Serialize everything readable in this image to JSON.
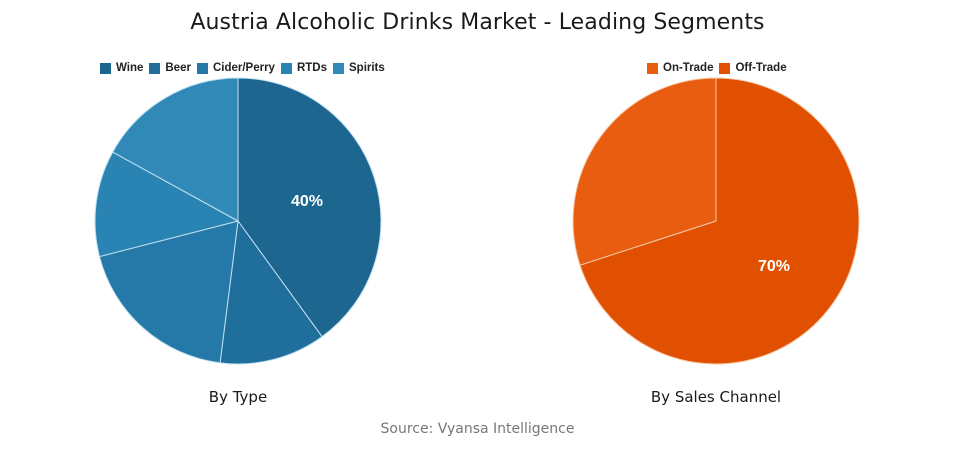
{
  "title": "Austria Alcoholic Drinks Market - Leading Segments",
  "source": "Source: Vyansa Intelligence",
  "chart_data": [
    {
      "type": "pie",
      "title": "By Type",
      "categories": [
        "Wine",
        "Beer",
        "Cider/Perry",
        "RTDs",
        "Spirits"
      ],
      "values": [
        40,
        12,
        19,
        12,
        17
      ],
      "colors": [
        "#1c6690",
        "#1f6e9c",
        "#2479a8",
        "#2984b3",
        "#3189b8"
      ],
      "data_labels": [
        "40%",
        "",
        "",
        "",
        ""
      ],
      "legend_position": "top",
      "start_angle": 0,
      "direction": "clockwise"
    },
    {
      "type": "pie",
      "title": "By Sales Channel",
      "categories": [
        "On-Trade",
        "Off-Trade"
      ],
      "values": [
        30,
        70
      ],
      "colors": [
        "#e85d10",
        "#e05000"
      ],
      "data_labels": [
        "",
        "70%"
      ],
      "legend_position": "top",
      "start_angle": 0,
      "direction": "counterclockwise-first-slice"
    }
  ],
  "left": {
    "caption": "By Type",
    "legend": [
      {
        "label": "Wine",
        "color": "#1c6690"
      },
      {
        "label": "Beer",
        "color": "#1f6e9c"
      },
      {
        "label": "Cider/Perry",
        "color": "#2479a8"
      },
      {
        "label": "RTDs",
        "color": "#2984b3"
      },
      {
        "label": "Spirits",
        "color": "#3189b8"
      }
    ],
    "label_text": "40%"
  },
  "right": {
    "caption": "By Sales Channel",
    "legend": [
      {
        "label": "On-Trade",
        "color": "#e85d10"
      },
      {
        "label": "Off-Trade",
        "color": "#e05000"
      }
    ],
    "label_text": "70%"
  }
}
